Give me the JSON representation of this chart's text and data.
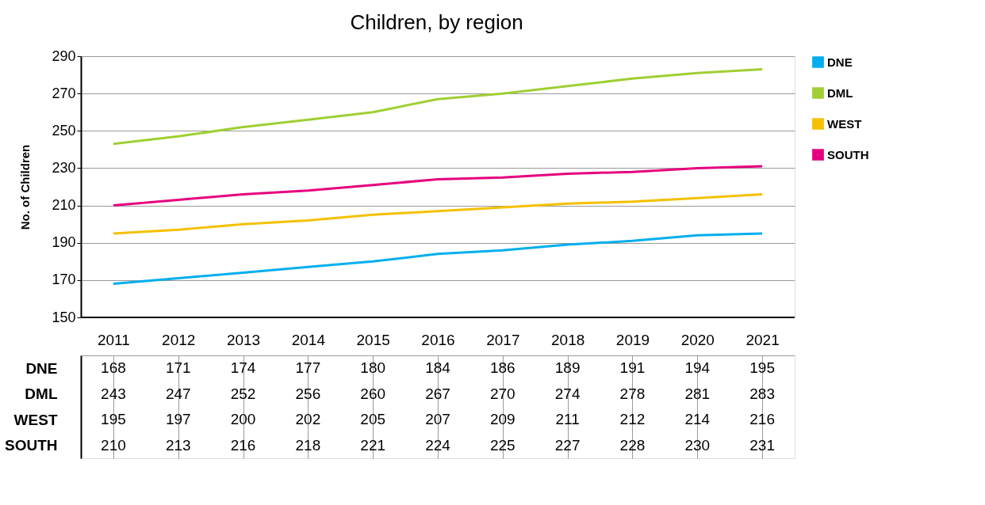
{
  "chart_data": {
    "type": "line",
    "title": "Children, by region",
    "ylabel": "No. of Children",
    "categories": [
      "2011",
      "2012",
      "2013",
      "2014",
      "2015",
      "2016",
      "2017",
      "2018",
      "2019",
      "2020",
      "2021"
    ],
    "series": [
      {
        "name": "DNE",
        "color": "#00aeef",
        "values": [
          168,
          171,
          174,
          177,
          180,
          184,
          186,
          189,
          191,
          194,
          195
        ]
      },
      {
        "name": "DML",
        "color": "#9fcf33",
        "values": [
          243,
          247,
          252,
          256,
          260,
          267,
          270,
          274,
          278,
          281,
          283
        ]
      },
      {
        "name": "WEST",
        "color": "#f5c000",
        "values": [
          195,
          197,
          200,
          202,
          205,
          207,
          209,
          211,
          212,
          214,
          216
        ]
      },
      {
        "name": "SOUTH",
        "color": "#e6007e",
        "values": [
          210,
          213,
          216,
          218,
          221,
          224,
          225,
          227,
          228,
          230,
          231
        ]
      }
    ],
    "ylim": [
      150,
      290
    ],
    "yticks": [
      150,
      170,
      190,
      210,
      230,
      250,
      270,
      290
    ],
    "grid": "y",
    "legend": "right",
    "data_labels": true,
    "marker": "none",
    "line_style": "solid"
  }
}
